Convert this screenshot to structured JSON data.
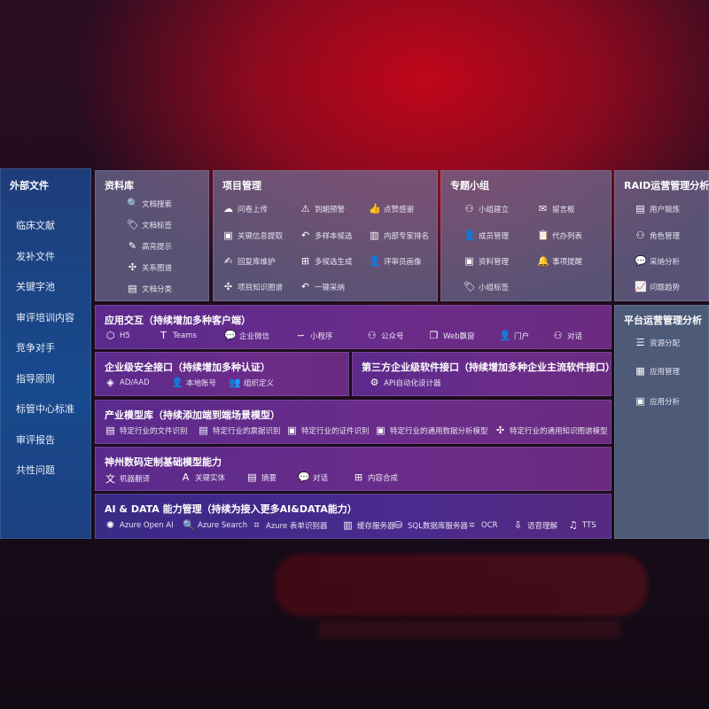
{
  "sidebar": {
    "title": "外部文件",
    "items": [
      "临床文献",
      "发补文件",
      "关键字池",
      "审评培训内容",
      "竞争对手",
      "指导原则",
      "标管中心标准",
      "审评报告",
      "共性问题"
    ]
  },
  "library": {
    "title": "资料库",
    "items": [
      {
        "label": "文档搜索",
        "icon": "doc-search-icon",
        "g": "🔍"
      },
      {
        "label": "文档标签",
        "icon": "tag-icon",
        "g": "🏷"
      },
      {
        "label": "高亮提示",
        "icon": "pen-icon",
        "g": "✎"
      },
      {
        "label": "关系图谱",
        "icon": "graph-icon",
        "g": "✣"
      },
      {
        "label": "文档分类",
        "icon": "doc-category-icon",
        "g": "▤"
      }
    ]
  },
  "project": {
    "title": "项目管理",
    "items": [
      {
        "label": "问卷上传",
        "icon": "cloud-upload-icon",
        "g": "☁"
      },
      {
        "label": "到期预警",
        "icon": "alarm-icon",
        "g": "⚠"
      },
      {
        "label": "点赞感谢",
        "icon": "thumbs-up-icon",
        "g": "👍"
      },
      {
        "label": "关键信息提取",
        "icon": "window-icon",
        "g": "▣"
      },
      {
        "label": "多样本候选",
        "icon": "reply-icon",
        "g": "↶"
      },
      {
        "label": "内部专家排名",
        "icon": "ranking-icon",
        "g": "▥"
      },
      {
        "label": "回复库维护",
        "icon": "edit-icon",
        "g": "✍"
      },
      {
        "label": "多候选生成",
        "icon": "puzzle-icon",
        "g": "⊞"
      },
      {
        "label": "评审员画像",
        "icon": "user-icon",
        "g": "👤"
      },
      {
        "label": "项目知识图谱",
        "icon": "network-icon",
        "g": "✣"
      },
      {
        "label": "一键采纳",
        "icon": "reply-icon",
        "g": "↶"
      }
    ]
  },
  "group": {
    "title": "专题小组",
    "items": [
      {
        "label": "小组建立",
        "icon": "group-icon",
        "g": "⚇"
      },
      {
        "label": "留言板",
        "icon": "bbs-icon",
        "g": "✉"
      },
      {
        "label": "成员管理",
        "icon": "member-icon",
        "g": "👤"
      },
      {
        "label": "代办列表",
        "icon": "clipboard-icon",
        "g": "📋"
      },
      {
        "label": "资料管理",
        "icon": "folder-icon",
        "g": "▣"
      },
      {
        "label": "事项提醒",
        "icon": "bell-icon",
        "g": "🔔"
      },
      {
        "label": "小组标签",
        "icon": "tag-icon",
        "g": "🏷"
      }
    ]
  },
  "raid": {
    "title": "RAID运营管理分析",
    "items": [
      {
        "label": "用户锻炼",
        "icon": "id-card-icon",
        "g": "▤"
      },
      {
        "label": "角色管理",
        "icon": "users-icon",
        "g": "⚇"
      },
      {
        "label": "采纳分析",
        "icon": "qa-icon",
        "g": "💬"
      },
      {
        "label": "问题趋势",
        "icon": "trend-icon",
        "g": "📈"
      }
    ]
  },
  "platform": {
    "title": "平台运营管理分析",
    "items": [
      {
        "label": "资源分配",
        "icon": "checklist-icon",
        "g": "☰"
      },
      {
        "label": "应用管理",
        "icon": "apps-icon",
        "g": "▦"
      },
      {
        "label": "应用分析",
        "icon": "analysis-icon",
        "g": "▣"
      }
    ]
  },
  "interaction": {
    "title": "应用交互（持续增加多种客户端）",
    "items": [
      {
        "label": "H5",
        "icon": "html5-icon",
        "g": "⬡"
      },
      {
        "label": "Teams",
        "icon": "teams-icon",
        "g": "T"
      },
      {
        "label": "企业微信",
        "icon": "wecom-icon",
        "g": "💬"
      },
      {
        "label": "小程序",
        "icon": "miniprogram-icon",
        "g": "∽"
      },
      {
        "label": "公众号",
        "icon": "official-account-icon",
        "g": "⚇"
      },
      {
        "label": "Web飘窗",
        "icon": "web-window-icon",
        "g": "❐"
      },
      {
        "label": "门户",
        "icon": "portal-icon",
        "g": "👤"
      },
      {
        "label": "对话",
        "icon": "chat-icon",
        "g": "⚇"
      }
    ]
  },
  "security": {
    "title": "企业级安全接口（持续增加多种认证）",
    "items": [
      {
        "label": "AD/AAD",
        "icon": "ad-icon",
        "g": "◈"
      },
      {
        "label": "本地账号",
        "icon": "local-account-icon",
        "g": "👤"
      },
      {
        "label": "组织定义",
        "icon": "org-icon",
        "g": "👥"
      }
    ]
  },
  "thirdparty": {
    "title": "第三方企业级软件接口（持续增加多种企业主流软件接口）",
    "items": [
      {
        "label": "API自动化设计器",
        "icon": "gear-icon",
        "g": "⚙"
      }
    ]
  },
  "industry": {
    "title": "产业模型库（持续添加端到端场景模型）",
    "items": [
      {
        "label": "特定行业的文件识别",
        "icon": "file-icon",
        "g": "▤"
      },
      {
        "label": "特定行业的票据识别",
        "icon": "receipt-icon",
        "g": "▤"
      },
      {
        "label": "特定行业的证件识别",
        "icon": "id-card-icon",
        "g": "▣"
      },
      {
        "label": "特定行业的通用数据分析模型",
        "icon": "chart-icon",
        "g": "▣"
      },
      {
        "label": "特定行业的通用知识图谱模型",
        "icon": "network-icon",
        "g": "✣"
      }
    ]
  },
  "base": {
    "title": "神州数码定制基础模型能力",
    "items": [
      {
        "label": "机器翻译",
        "icon": "translate-icon",
        "g": "文"
      },
      {
        "label": "关键实体",
        "icon": "entity-icon",
        "g": "A"
      },
      {
        "label": "摘要",
        "icon": "summary-icon",
        "g": "▤"
      },
      {
        "label": "对话",
        "icon": "chat-icon",
        "g": "💬"
      },
      {
        "label": "内容合成",
        "icon": "puzzle-icon",
        "g": "⊞"
      }
    ]
  },
  "aidata": {
    "title": "AI & DATA 能力管理（持续为接入更多AI&DATA能力）",
    "items": [
      {
        "label": "Azure Open AI",
        "icon": "openai-icon",
        "g": "✺"
      },
      {
        "label": "Azure Search",
        "icon": "search-doc-icon",
        "g": "🔍"
      },
      {
        "label": "Azure 表单识别器",
        "icon": "form-recognizer-icon",
        "g": "⌗"
      },
      {
        "label": "缓存服务器",
        "icon": "cache-server-icon",
        "g": "▥"
      },
      {
        "label": "SQL数据库服务器",
        "icon": "database-icon",
        "g": "⛁"
      },
      {
        "label": "OCR",
        "icon": "ocr-icon",
        "g": "⌗"
      },
      {
        "label": "语音理解",
        "icon": "speech-icon",
        "g": "⇩"
      },
      {
        "label": "TTS",
        "icon": "tts-icon",
        "g": "♫"
      }
    ]
  }
}
